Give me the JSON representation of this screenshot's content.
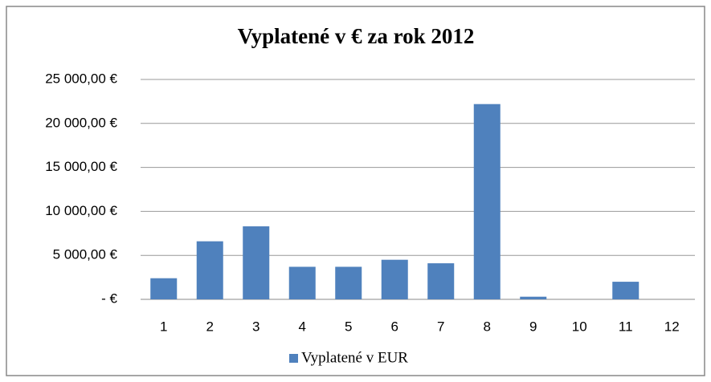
{
  "chart_data": {
    "type": "bar",
    "title": "Vyplatené v € za rok 2012",
    "categories": [
      "1",
      "2",
      "3",
      "4",
      "5",
      "6",
      "7",
      "8",
      "9",
      "10",
      "11",
      "12"
    ],
    "series": [
      {
        "name": "Vyplatené v EUR",
        "color": "#4f81bd",
        "values": [
          2400,
          6600,
          8300,
          3700,
          3700,
          4500,
          4100,
          22200,
          300,
          0,
          2000,
          0
        ]
      }
    ],
    "ylim": [
      0,
      25000
    ],
    "yticks": [
      {
        "value": 0,
        "label": "-   €"
      },
      {
        "value": 5000,
        "label": "5 000,00 €"
      },
      {
        "value": 10000,
        "label": "10 000,00 €"
      },
      {
        "value": 15000,
        "label": "15 000,00 €"
      },
      {
        "value": 20000,
        "label": "20 000,00 €"
      },
      {
        "value": 25000,
        "label": "25 000,00 €"
      }
    ],
    "grid": true,
    "legend": "bottom"
  }
}
